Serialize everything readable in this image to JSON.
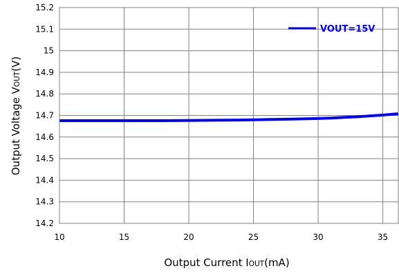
{
  "chart_data": {
    "type": "line",
    "title": "",
    "xlabel": {
      "prefix": "Output Current I",
      "sub": "OUT",
      "suffix": "(mA)"
    },
    "ylabel": {
      "prefix": "Output Voltage V",
      "sub": "OUT",
      "suffix": "(V)"
    },
    "xlim": [
      10,
      36.2
    ],
    "ylim": [
      14.2,
      15.2
    ],
    "xticks": [
      "10",
      "15",
      "20",
      "25",
      "30",
      "35"
    ],
    "yticks": [
      "15.2",
      "15.1",
      "15",
      "14.9",
      "14.8",
      "14.7",
      "14.6",
      "14.5",
      "14.4",
      "14.3",
      "14.2"
    ],
    "grid": true,
    "legend_position": "top-right",
    "series": [
      {
        "name": "VOUT=15V",
        "color": "#0000ff",
        "x": [
          10,
          12,
          14,
          16,
          18,
          20,
          22,
          24,
          26,
          28,
          30,
          31,
          32,
          33,
          34,
          35,
          36.2
        ],
        "y": [
          14.676,
          14.676,
          14.676,
          14.676,
          14.676,
          14.677,
          14.678,
          14.679,
          14.681,
          14.683,
          14.686,
          14.688,
          14.691,
          14.694,
          14.698,
          14.702,
          14.708
        ]
      }
    ]
  }
}
